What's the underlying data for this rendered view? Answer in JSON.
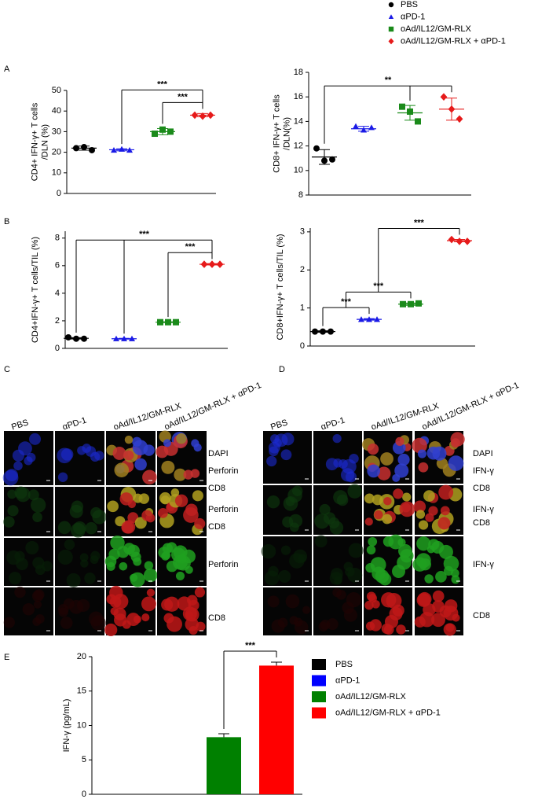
{
  "legend": {
    "items": [
      {
        "name": "PBS",
        "color": "#000000",
        "marker": "circle"
      },
      {
        "name": "αPD-1",
        "color": "#1a1ae6",
        "marker": "triangle"
      },
      {
        "name": "oAd/IL12/GM-RLX",
        "color": "#1a8a1a",
        "marker": "square"
      },
      {
        "name": "oAd/IL12/GM-RLX  + αPD-1",
        "color": "#e61a1a",
        "marker": "diamond"
      }
    ]
  },
  "panel_labels": [
    "A",
    "B",
    "E"
  ],
  "chart_data": [
    {
      "type": "dot",
      "ylabel": [
        "CD4+ IFN-γ+ T cells",
        "/DLN (%)"
      ],
      "ylim": [
        0,
        50
      ],
      "yticks": [
        0,
        10,
        20,
        30,
        40,
        50
      ],
      "series": [
        {
          "color": "#000000",
          "marker": "circle",
          "values": [
            22,
            22.5,
            21
          ],
          "mean": 22,
          "error": 1
        },
        {
          "color": "#1a1ae6",
          "marker": "triangle",
          "values": [
            21,
            21.5,
            21
          ],
          "mean": 21.2,
          "error": 0.5
        },
        {
          "color": "#1a8a1a",
          "marker": "square",
          "values": [
            29,
            31,
            30
          ],
          "mean": 30,
          "error": 1.5
        },
        {
          "color": "#e61a1a",
          "marker": "diamond",
          "values": [
            38,
            37.5,
            38
          ],
          "mean": 38,
          "error": 0.8
        }
      ],
      "annotations": [
        {
          "text": "***",
          "from": 2,
          "to": 3
        },
        {
          "text": "***",
          "from": 1,
          "to": 3
        }
      ]
    },
    {
      "type": "dot",
      "ylabel": [
        "CD8+ IFN-γ+ T cells",
        "/DLN(%)"
      ],
      "ylim": [
        8,
        18
      ],
      "yticks": [
        8,
        10,
        12,
        14,
        16,
        18
      ],
      "series": [
        {
          "color": "#000000",
          "marker": "circle",
          "values": [
            11.8,
            10.8,
            10.9
          ],
          "mean": 11.1,
          "error": 0.6
        },
        {
          "color": "#1a1ae6",
          "marker": "triangle",
          "values": [
            13.6,
            13.3,
            13.5
          ],
          "mean": 13.4,
          "error": 0.2
        },
        {
          "color": "#1a8a1a",
          "marker": "square",
          "values": [
            15.2,
            14.8,
            14.0
          ],
          "mean": 14.7,
          "error": 0.6
        },
        {
          "color": "#e61a1a",
          "marker": "diamond",
          "values": [
            16,
            15,
            14.2
          ],
          "mean": 15,
          "error": 0.9
        }
      ],
      "annotations": [
        {
          "text": "**",
          "from": 0,
          "to": [
            2,
            3
          ]
        }
      ]
    },
    {
      "type": "dot",
      "ylabel": [
        "CD4+IFN-γ+ T cells/TIL (%)"
      ],
      "ylim": [
        0,
        8.5
      ],
      "yticks": [
        0,
        2,
        4,
        6,
        8
      ],
      "series": [
        {
          "color": "#000000",
          "marker": "circle",
          "values": [
            0.8,
            0.7,
            0.7
          ],
          "mean": 0.73,
          "error": 0.05
        },
        {
          "color": "#1a1ae6",
          "marker": "triangle",
          "values": [
            0.7,
            0.7,
            0.7
          ],
          "mean": 0.7,
          "error": 0.03
        },
        {
          "color": "#1a8a1a",
          "marker": "square",
          "values": [
            1.9,
            1.9,
            1.9
          ],
          "mean": 1.9,
          "error": 0.03
        },
        {
          "color": "#e61a1a",
          "marker": "diamond",
          "values": [
            6.1,
            6.1,
            6.1
          ],
          "mean": 6.1,
          "error": 0.05
        }
      ],
      "annotations": [
        {
          "text": "***",
          "from": 2,
          "to": 3
        },
        {
          "text": "***",
          "from": [
            0,
            1
          ],
          "to": 3
        }
      ]
    },
    {
      "type": "dot",
      "ylabel": [
        "CD8+IFN-γ+ T cells/TIL (%)"
      ],
      "ylim": [
        0,
        3.1
      ],
      "yticks": [
        0,
        1,
        2,
        3
      ],
      "series": [
        {
          "color": "#000000",
          "marker": "circle",
          "values": [
            0.38,
            0.38,
            0.38
          ],
          "mean": 0.38,
          "error": 0.02
        },
        {
          "color": "#1a1ae6",
          "marker": "triangle",
          "values": [
            0.7,
            0.7,
            0.7
          ],
          "mean": 0.7,
          "error": 0.02
        },
        {
          "color": "#1a8a1a",
          "marker": "square",
          "values": [
            1.1,
            1.1,
            1.12
          ],
          "mean": 1.1,
          "error": 0.03
        },
        {
          "color": "#e61a1a",
          "marker": "diamond",
          "values": [
            2.8,
            2.75,
            2.75
          ],
          "mean": 2.77,
          "error": 0.03
        }
      ],
      "annotations": [
        {
          "text": "***",
          "from": 0,
          "to": 1
        },
        {
          "text": "***",
          "from": [
            0,
            1
          ],
          "to": 2
        },
        {
          "text": "***",
          "from": [
            0,
            1,
            2
          ],
          "to": 3
        }
      ]
    },
    {
      "type": "bar",
      "ylabel": [
        "IFN-γ (pg/mL)"
      ],
      "ylim": [
        0,
        20
      ],
      "yticks": [
        0,
        5,
        10,
        15,
        20
      ],
      "series": [
        {
          "name": "PBS",
          "color": "#000000",
          "values": [
            0
          ],
          "errors": [
            0
          ]
        },
        {
          "name": "αPD-1",
          "color": "#0000ff",
          "values": [
            0
          ],
          "errors": [
            0
          ]
        },
        {
          "name": "oAd/IL12/GM-RLX",
          "color": "#008000",
          "values": [
            8.3
          ],
          "errors": [
            0.5
          ]
        },
        {
          "name": "oAd/IL12/GM-RLX + αPD-1",
          "color": "#ff0000",
          "values": [
            18.7
          ],
          "errors": [
            0.5
          ]
        }
      ],
      "annotations": [
        {
          "text": "***",
          "from": 2,
          "to": 3
        }
      ]
    }
  ],
  "microscopy": [
    {
      "label": "C",
      "columns": [
        "PBS",
        "αPD-1",
        "oAd/IL12/GM-RLX",
        "oAd/IL12/GM-RLX  + αPD-1"
      ],
      "rows": [
        [
          {
            "text": "DAPI",
            "color": "#1a1ae6"
          },
          {
            "text": "Perforin",
            "color": "#1a9a1a"
          },
          {
            "text": "CD8",
            "color": "#e61a1a"
          }
        ],
        [
          {
            "text": "Perforin",
            "color": "#1a9a1a"
          },
          {
            "text": "CD8",
            "color": "#e61a1a"
          }
        ],
        [
          {
            "text": "Perforin",
            "color": "#1a9a1a"
          }
        ],
        [
          {
            "text": "CD8",
            "color": "#e61a1a"
          }
        ]
      ]
    },
    {
      "label": "D",
      "columns": [
        "PBS",
        "αPD-1",
        "oAd/IL12/GM-RLX",
        "oAd/IL12/GM-RLX  + αPD-1"
      ],
      "rows": [
        [
          {
            "text": "DAPI",
            "color": "#1a1ae6"
          },
          {
            "text": "IFN-γ",
            "color": "#1a9a1a"
          },
          {
            "text": "CD8",
            "color": "#e61a1a"
          }
        ],
        [
          {
            "text": "IFN-γ",
            "color": "#1a9a1a"
          },
          {
            "text": "CD8",
            "color": "#e61a1a"
          }
        ],
        [
          {
            "text": "IFN-γ",
            "color": "#1a9a1a"
          }
        ],
        [
          {
            "text": "CD8",
            "color": "#e61a1a"
          }
        ]
      ]
    }
  ]
}
